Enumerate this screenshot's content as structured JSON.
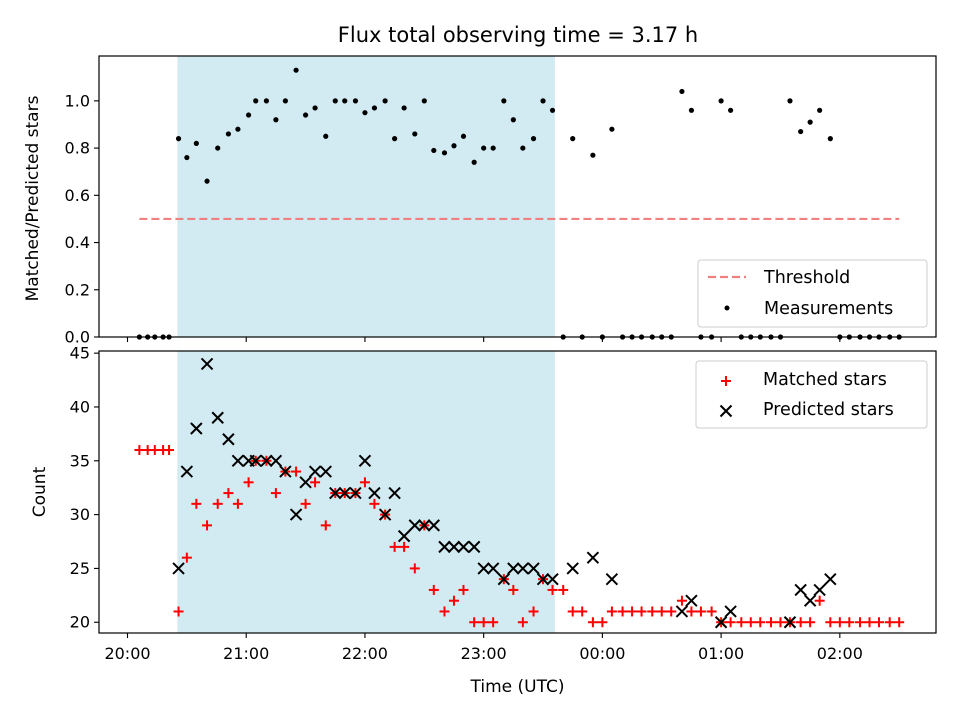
{
  "chart_data": [
    {
      "type": "scatter",
      "title": "Flux total observing time = 3.17 h",
      "xlabel": "",
      "ylabel": "Matched/Predicted stars",
      "x_unit": "hours from 20:00 UTC",
      "xlim": [
        -0.24,
        6.81
      ],
      "ylim": [
        0,
        1.19
      ],
      "yticks": [
        0.0,
        0.2,
        0.4,
        0.6,
        0.8,
        1.0
      ],
      "ytick_labels": [
        "0.0",
        "0.2",
        "0.4",
        "0.6",
        "0.8",
        "1.0"
      ],
      "shaded_region": {
        "x_start": 0.42,
        "x_end": 3.6,
        "color": "#add8e6"
      },
      "legend_position": "lower-right",
      "series": [
        {
          "name": "Threshold",
          "style": "dashed-line",
          "color": "#f08080",
          "x": [
            0.1,
            6.5
          ],
          "y": [
            0.5,
            0.5
          ]
        },
        {
          "name": "Measurements",
          "style": "dot",
          "color": "#000000",
          "points": [
            [
              0.1,
              0
            ],
            [
              0.17,
              0
            ],
            [
              0.23,
              0
            ],
            [
              0.3,
              0
            ],
            [
              0.35,
              0
            ],
            [
              0.43,
              0.84
            ],
            [
              0.5,
              0.76
            ],
            [
              0.58,
              0.82
            ],
            [
              0.67,
              0.66
            ],
            [
              0.76,
              0.8
            ],
            [
              0.85,
              0.86
            ],
            [
              0.93,
              0.88
            ],
            [
              1.02,
              0.94
            ],
            [
              1.08,
              1.0
            ],
            [
              1.17,
              1.0
            ],
            [
              1.25,
              0.92
            ],
            [
              1.33,
              1.0
            ],
            [
              1.42,
              1.13
            ],
            [
              1.5,
              0.94
            ],
            [
              1.58,
              0.97
            ],
            [
              1.67,
              0.85
            ],
            [
              1.75,
              1.0
            ],
            [
              1.83,
              1.0
            ],
            [
              1.92,
              1.0
            ],
            [
              2.0,
              0.95
            ],
            [
              2.08,
              0.97
            ],
            [
              2.17,
              1.0
            ],
            [
              2.25,
              0.84
            ],
            [
              2.33,
              0.97
            ],
            [
              2.42,
              0.86
            ],
            [
              2.5,
              1.0
            ],
            [
              2.58,
              0.79
            ],
            [
              2.67,
              0.78
            ],
            [
              2.75,
              0.81
            ],
            [
              2.83,
              0.85
            ],
            [
              2.92,
              0.74
            ],
            [
              3.0,
              0.8
            ],
            [
              3.08,
              0.8
            ],
            [
              3.17,
              1.0
            ],
            [
              3.25,
              0.92
            ],
            [
              3.33,
              0.8
            ],
            [
              3.42,
              0.84
            ],
            [
              3.5,
              1.0
            ],
            [
              3.58,
              0.96
            ],
            [
              3.67,
              0
            ],
            [
              3.75,
              0.84
            ],
            [
              3.83,
              0
            ],
            [
              3.92,
              0.77
            ],
            [
              4.0,
              0
            ],
            [
              4.08,
              0.88
            ],
            [
              4.17,
              0
            ],
            [
              4.25,
              0
            ],
            [
              4.33,
              0
            ],
            [
              4.42,
              0
            ],
            [
              4.5,
              0
            ],
            [
              4.58,
              0
            ],
            [
              4.67,
              1.04
            ],
            [
              4.75,
              0.96
            ],
            [
              4.83,
              0
            ],
            [
              4.92,
              0
            ],
            [
              5.0,
              1.0
            ],
            [
              5.08,
              0.96
            ],
            [
              5.17,
              0
            ],
            [
              5.25,
              0
            ],
            [
              5.33,
              0
            ],
            [
              5.42,
              0
            ],
            [
              5.5,
              0
            ],
            [
              5.58,
              1.0
            ],
            [
              5.67,
              0.87
            ],
            [
              5.75,
              0.91
            ],
            [
              5.83,
              0.96
            ],
            [
              5.92,
              0.84
            ],
            [
              6.0,
              0
            ],
            [
              6.08,
              0
            ],
            [
              6.17,
              0
            ],
            [
              6.25,
              0
            ],
            [
              6.33,
              0
            ],
            [
              6.42,
              0
            ],
            [
              6.5,
              0
            ]
          ]
        }
      ]
    },
    {
      "type": "scatter",
      "title": "",
      "xlabel": "Time (UTC)",
      "ylabel": "Count",
      "x_unit": "hours from 20:00 UTC",
      "xlim": [
        -0.24,
        6.81
      ],
      "ylim": [
        19,
        45.2
      ],
      "yticks": [
        20,
        25,
        30,
        35,
        40,
        45
      ],
      "ytick_labels": [
        "20",
        "25",
        "30",
        "35",
        "40",
        "45"
      ],
      "xticks": [
        0,
        1,
        2,
        3,
        4,
        5,
        6
      ],
      "xtick_labels": [
        "20:00",
        "21:00",
        "22:00",
        "23:00",
        "00:00",
        "01:00",
        "02:00"
      ],
      "shaded_region": {
        "x_start": 0.42,
        "x_end": 3.6,
        "color": "#add8e6"
      },
      "legend_position": "top-right",
      "series": [
        {
          "name": "Matched stars",
          "style": "plus",
          "color": "#ff0000",
          "points": [
            [
              0.1,
              36
            ],
            [
              0.17,
              36
            ],
            [
              0.23,
              36
            ],
            [
              0.3,
              36
            ],
            [
              0.35,
              36
            ],
            [
              0.43,
              21
            ],
            [
              0.5,
              26
            ],
            [
              0.58,
              31
            ],
            [
              0.67,
              29
            ],
            [
              0.76,
              31
            ],
            [
              0.85,
              32
            ],
            [
              0.93,
              31
            ],
            [
              1.02,
              33
            ],
            [
              1.08,
              35
            ],
            [
              1.17,
              35
            ],
            [
              1.25,
              32
            ],
            [
              1.33,
              34
            ],
            [
              1.42,
              34
            ],
            [
              1.5,
              31
            ],
            [
              1.58,
              33
            ],
            [
              1.67,
              29
            ],
            [
              1.75,
              32
            ],
            [
              1.83,
              32
            ],
            [
              1.92,
              32
            ],
            [
              2.0,
              33
            ],
            [
              2.08,
              31
            ],
            [
              2.17,
              30
            ],
            [
              2.25,
              27
            ],
            [
              2.33,
              27
            ],
            [
              2.42,
              25
            ],
            [
              2.5,
              29
            ],
            [
              2.58,
              23
            ],
            [
              2.67,
              21
            ],
            [
              2.75,
              22
            ],
            [
              2.83,
              23
            ],
            [
              2.92,
              20
            ],
            [
              3.0,
              20
            ],
            [
              3.08,
              20
            ],
            [
              3.17,
              24
            ],
            [
              3.25,
              23
            ],
            [
              3.33,
              20
            ],
            [
              3.42,
              21
            ],
            [
              3.5,
              24
            ],
            [
              3.58,
              23
            ],
            [
              3.67,
              23
            ],
            [
              3.75,
              21
            ],
            [
              3.83,
              21
            ],
            [
              3.92,
              20
            ],
            [
              4.0,
              20
            ],
            [
              4.08,
              21
            ],
            [
              4.17,
              21
            ],
            [
              4.25,
              21
            ],
            [
              4.33,
              21
            ],
            [
              4.42,
              21
            ],
            [
              4.5,
              21
            ],
            [
              4.58,
              21
            ],
            [
              4.67,
              22
            ],
            [
              4.75,
              21
            ],
            [
              4.83,
              21
            ],
            [
              4.92,
              21
            ],
            [
              5.0,
              20
            ],
            [
              5.08,
              20
            ],
            [
              5.17,
              20
            ],
            [
              5.25,
              20
            ],
            [
              5.33,
              20
            ],
            [
              5.42,
              20
            ],
            [
              5.5,
              20
            ],
            [
              5.58,
              20
            ],
            [
              5.67,
              20
            ],
            [
              5.75,
              20
            ],
            [
              5.83,
              22
            ],
            [
              5.92,
              20
            ],
            [
              6.0,
              20
            ],
            [
              6.08,
              20
            ],
            [
              6.17,
              20
            ],
            [
              6.25,
              20
            ],
            [
              6.33,
              20
            ],
            [
              6.42,
              20
            ],
            [
              6.5,
              20
            ]
          ]
        },
        {
          "name": "Predicted stars",
          "style": "x",
          "color": "#000000",
          "points": [
            [
              0.43,
              25
            ],
            [
              0.5,
              34
            ],
            [
              0.58,
              38
            ],
            [
              0.67,
              44
            ],
            [
              0.76,
              39
            ],
            [
              0.85,
              37
            ],
            [
              0.93,
              35
            ],
            [
              1.02,
              35
            ],
            [
              1.08,
              35
            ],
            [
              1.17,
              35
            ],
            [
              1.25,
              35
            ],
            [
              1.33,
              34
            ],
            [
              1.42,
              30
            ],
            [
              1.5,
              33
            ],
            [
              1.58,
              34
            ],
            [
              1.67,
              34
            ],
            [
              1.75,
              32
            ],
            [
              1.83,
              32
            ],
            [
              1.92,
              32
            ],
            [
              2.0,
              35
            ],
            [
              2.08,
              32
            ],
            [
              2.17,
              30
            ],
            [
              2.25,
              32
            ],
            [
              2.33,
              28
            ],
            [
              2.42,
              29
            ],
            [
              2.5,
              29
            ],
            [
              2.58,
              29
            ],
            [
              2.67,
              27
            ],
            [
              2.75,
              27
            ],
            [
              2.83,
              27
            ],
            [
              2.92,
              27
            ],
            [
              3.0,
              25
            ],
            [
              3.08,
              25
            ],
            [
              3.17,
              24
            ],
            [
              3.25,
              25
            ],
            [
              3.33,
              25
            ],
            [
              3.42,
              25
            ],
            [
              3.5,
              24
            ],
            [
              3.58,
              24
            ],
            [
              3.75,
              25
            ],
            [
              3.92,
              26
            ],
            [
              4.08,
              24
            ],
            [
              4.67,
              21
            ],
            [
              4.75,
              22
            ],
            [
              5.0,
              20
            ],
            [
              5.08,
              21
            ],
            [
              5.58,
              20
            ],
            [
              5.67,
              23
            ],
            [
              5.75,
              22
            ],
            [
              5.83,
              23
            ],
            [
              5.92,
              24
            ]
          ]
        }
      ]
    }
  ]
}
